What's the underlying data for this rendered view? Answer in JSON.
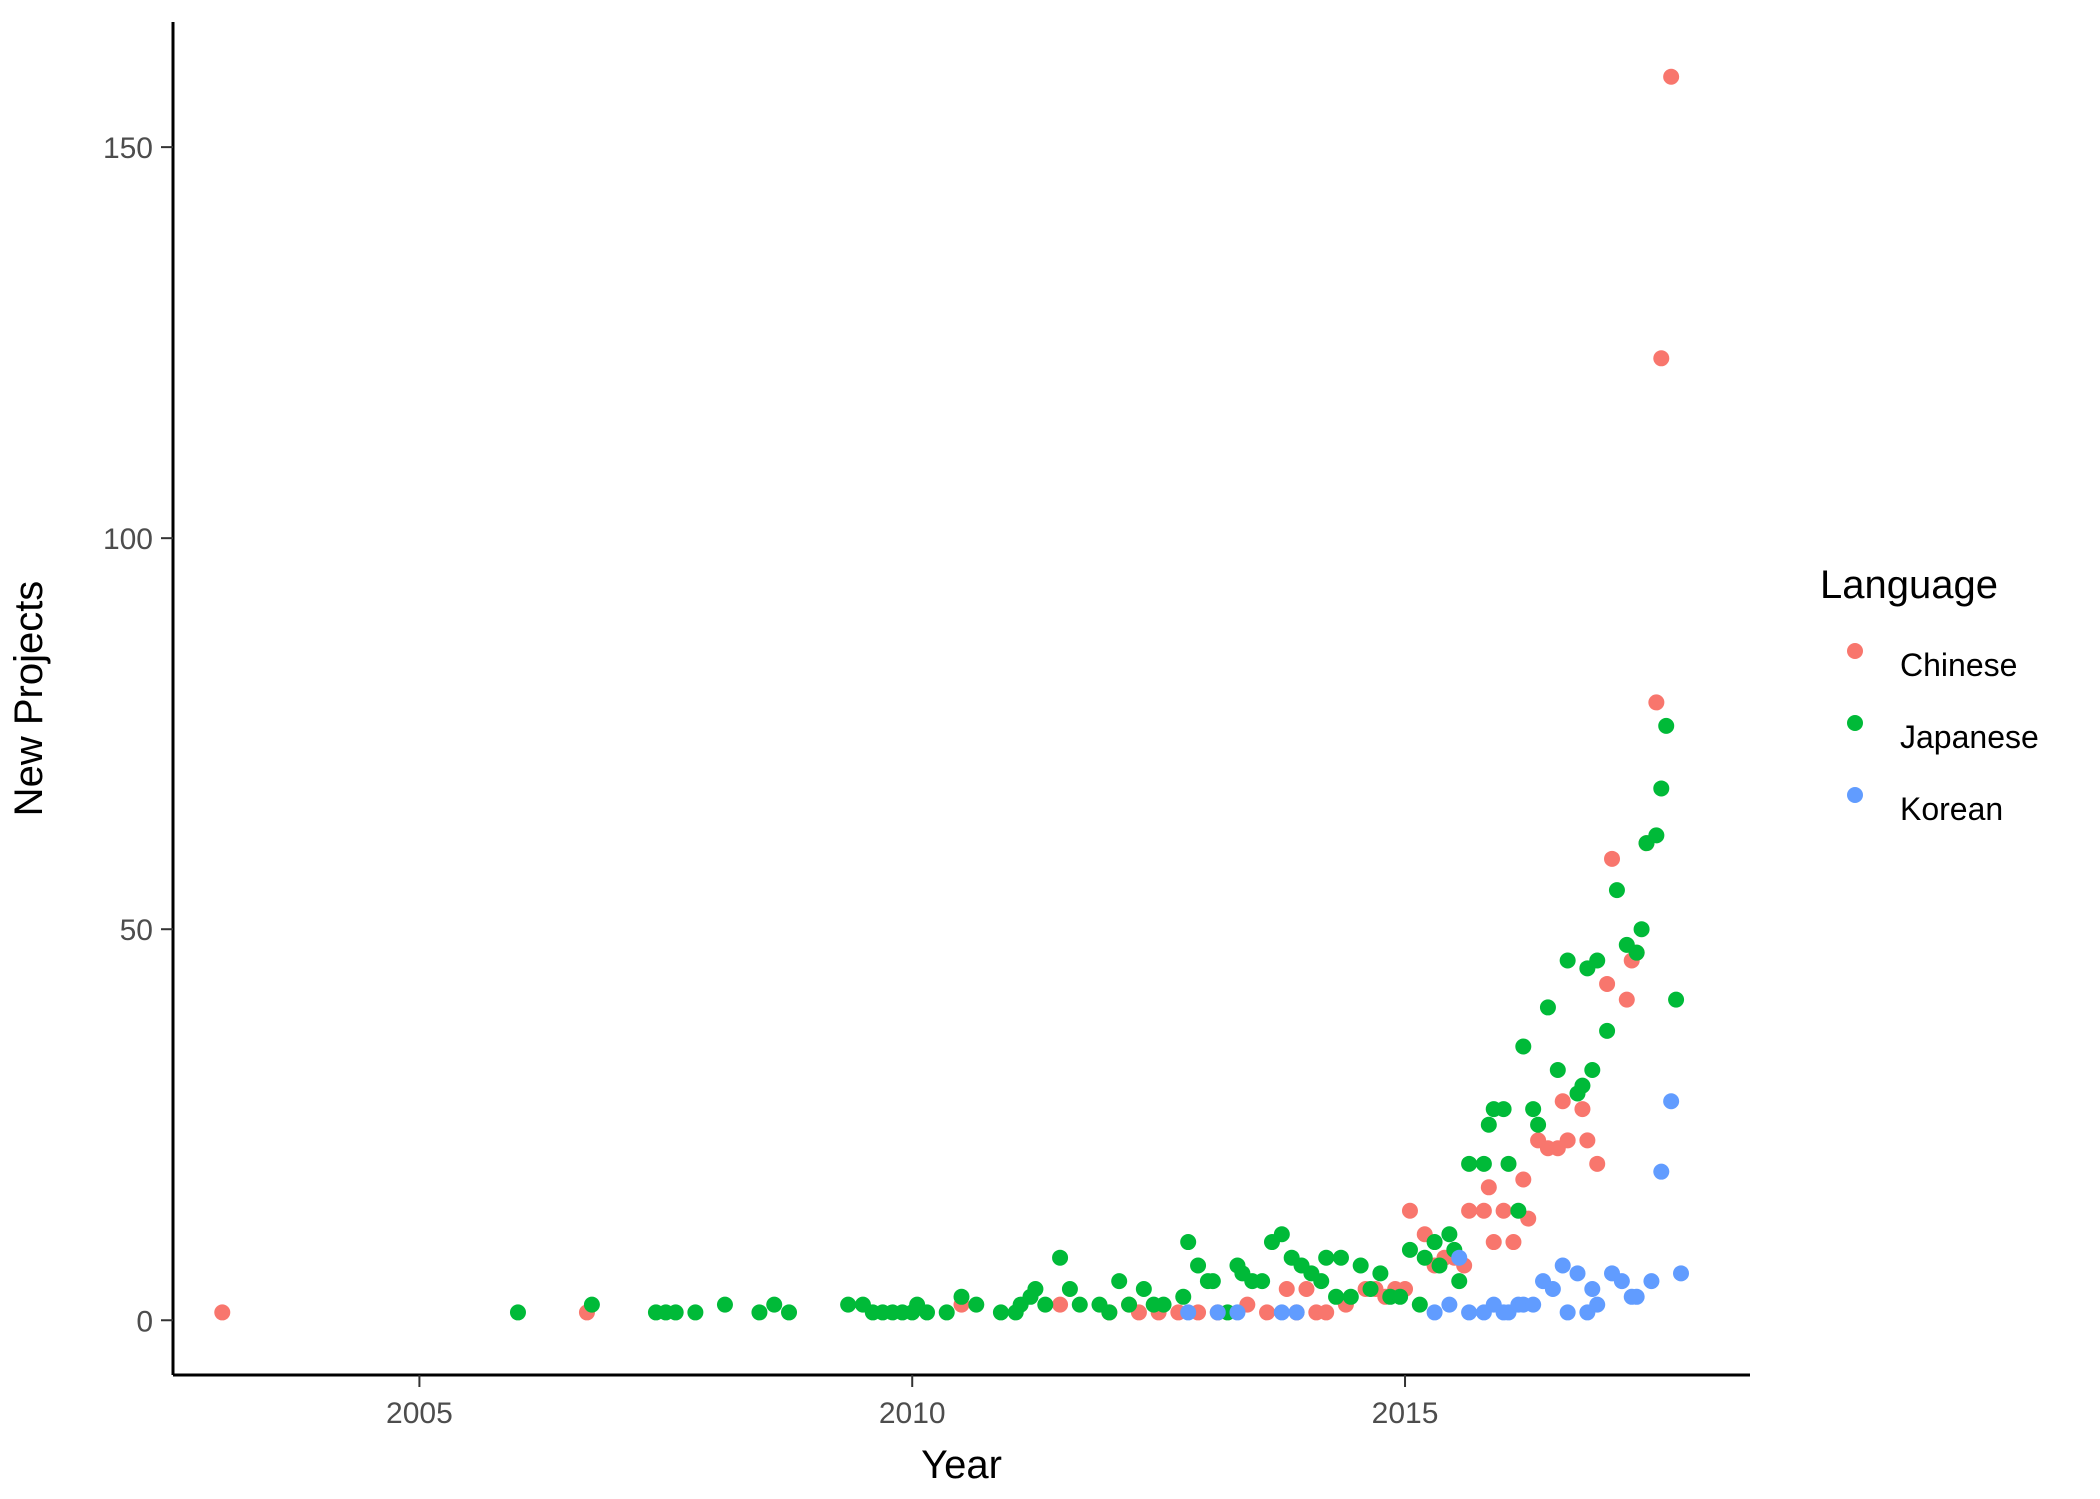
{
  "chart_data": {
    "type": "scatter",
    "title": "",
    "xlabel": "Year",
    "ylabel": "New Projects",
    "xlim": [
      2002.5,
      2018.5
    ],
    "ylim": [
      -7,
      166
    ],
    "x_ticks": [
      {
        "value": 2005,
        "label": "2005"
      },
      {
        "value": 2010,
        "label": "2010"
      },
      {
        "value": 2015,
        "label": "2015"
      }
    ],
    "y_ticks": [
      {
        "value": 0,
        "label": "0"
      },
      {
        "value": 50,
        "label": "50"
      },
      {
        "value": 100,
        "label": "100"
      },
      {
        "value": 150,
        "label": "150"
      }
    ],
    "grid": false,
    "legend": {
      "title": "Language",
      "position": "right"
    },
    "series": [
      {
        "name": "Chinese",
        "color": "#F8766D",
        "points": [
          [
            2003.0,
            1
          ],
          [
            2006.7,
            1
          ],
          [
            2010.5,
            2
          ],
          [
            2011.5,
            2
          ],
          [
            2012.0,
            1
          ],
          [
            2012.2,
            2
          ],
          [
            2012.3,
            1
          ],
          [
            2012.5,
            1
          ],
          [
            2012.7,
            1
          ],
          [
            2012.9,
            1
          ],
          [
            2013.1,
            1
          ],
          [
            2013.4,
            2
          ],
          [
            2013.6,
            1
          ],
          [
            2013.8,
            4
          ],
          [
            2013.9,
            1
          ],
          [
            2014.0,
            4
          ],
          [
            2014.1,
            1
          ],
          [
            2014.2,
            1
          ],
          [
            2014.4,
            2
          ],
          [
            2014.6,
            4
          ],
          [
            2014.7,
            4
          ],
          [
            2014.8,
            3
          ],
          [
            2014.9,
            4
          ],
          [
            2015.0,
            4
          ],
          [
            2015.05,
            14
          ],
          [
            2015.2,
            11
          ],
          [
            2015.3,
            7
          ],
          [
            2015.4,
            8
          ],
          [
            2015.5,
            8
          ],
          [
            2015.6,
            7
          ],
          [
            2015.65,
            14
          ],
          [
            2015.8,
            14
          ],
          [
            2015.85,
            17
          ],
          [
            2015.9,
            10
          ],
          [
            2016.0,
            14
          ],
          [
            2016.1,
            10
          ],
          [
            2016.2,
            18
          ],
          [
            2016.25,
            13
          ],
          [
            2016.35,
            23
          ],
          [
            2016.45,
            22
          ],
          [
            2016.55,
            22
          ],
          [
            2016.6,
            28
          ],
          [
            2016.65,
            23
          ],
          [
            2016.8,
            27
          ],
          [
            2016.85,
            23
          ],
          [
            2016.95,
            20
          ],
          [
            2017.05,
            43
          ],
          [
            2017.1,
            59
          ],
          [
            2017.25,
            41
          ],
          [
            2017.3,
            46
          ],
          [
            2017.35,
            47
          ],
          [
            2017.45,
            61
          ],
          [
            2017.55,
            79
          ],
          [
            2017.6,
            123
          ],
          [
            2017.7,
            159
          ]
        ]
      },
      {
        "name": "Japanese",
        "color": "#00BA38",
        "points": [
          [
            2006.0,
            1
          ],
          [
            2006.75,
            2
          ],
          [
            2007.4,
            1
          ],
          [
            2007.5,
            1
          ],
          [
            2007.6,
            1
          ],
          [
            2007.8,
            1
          ],
          [
            2008.1,
            2
          ],
          [
            2008.45,
            1
          ],
          [
            2008.6,
            2
          ],
          [
            2008.75,
            1
          ],
          [
            2009.35,
            2
          ],
          [
            2009.5,
            2
          ],
          [
            2009.6,
            1
          ],
          [
            2009.7,
            1
          ],
          [
            2009.8,
            1
          ],
          [
            2009.9,
            1
          ],
          [
            2010.0,
            1
          ],
          [
            2010.05,
            2
          ],
          [
            2010.15,
            1
          ],
          [
            2010.35,
            1
          ],
          [
            2010.5,
            3
          ],
          [
            2010.65,
            2
          ],
          [
            2010.9,
            1
          ],
          [
            2011.05,
            1
          ],
          [
            2011.1,
            2
          ],
          [
            2011.2,
            3
          ],
          [
            2011.25,
            4
          ],
          [
            2011.35,
            2
          ],
          [
            2011.5,
            8
          ],
          [
            2011.6,
            4
          ],
          [
            2011.7,
            2
          ],
          [
            2011.9,
            2
          ],
          [
            2012.0,
            1
          ],
          [
            2012.1,
            5
          ],
          [
            2012.2,
            2
          ],
          [
            2012.35,
            4
          ],
          [
            2012.45,
            2
          ],
          [
            2012.55,
            2
          ],
          [
            2012.75,
            3
          ],
          [
            2012.8,
            10
          ],
          [
            2012.9,
            7
          ],
          [
            2013.0,
            5
          ],
          [
            2013.05,
            5
          ],
          [
            2013.2,
            1
          ],
          [
            2013.3,
            7
          ],
          [
            2013.35,
            6
          ],
          [
            2013.45,
            5
          ],
          [
            2013.55,
            5
          ],
          [
            2013.65,
            10
          ],
          [
            2013.75,
            11
          ],
          [
            2013.85,
            8
          ],
          [
            2013.95,
            7
          ],
          [
            2014.05,
            6
          ],
          [
            2014.15,
            5
          ],
          [
            2014.2,
            8
          ],
          [
            2014.3,
            3
          ],
          [
            2014.35,
            8
          ],
          [
            2014.45,
            3
          ],
          [
            2014.55,
            7
          ],
          [
            2014.65,
            4
          ],
          [
            2014.75,
            6
          ],
          [
            2014.85,
            3
          ],
          [
            2014.95,
            3
          ],
          [
            2015.05,
            9
          ],
          [
            2015.15,
            2
          ],
          [
            2015.2,
            8
          ],
          [
            2015.3,
            10
          ],
          [
            2015.35,
            7
          ],
          [
            2015.45,
            11
          ],
          [
            2015.5,
            9
          ],
          [
            2015.55,
            5
          ],
          [
            2015.65,
            20
          ],
          [
            2015.8,
            20
          ],
          [
            2015.85,
            25
          ],
          [
            2015.9,
            27
          ],
          [
            2016.0,
            27
          ],
          [
            2016.05,
            20
          ],
          [
            2016.15,
            14
          ],
          [
            2016.2,
            35
          ],
          [
            2016.3,
            27
          ],
          [
            2016.35,
            25
          ],
          [
            2016.45,
            40
          ],
          [
            2016.55,
            32
          ],
          [
            2016.65,
            46
          ],
          [
            2016.75,
            29
          ],
          [
            2016.8,
            30
          ],
          [
            2016.85,
            45
          ],
          [
            2016.9,
            32
          ],
          [
            2016.95,
            46
          ],
          [
            2017.05,
            37
          ],
          [
            2017.15,
            55
          ],
          [
            2017.25,
            48
          ],
          [
            2017.35,
            47
          ],
          [
            2017.4,
            50
          ],
          [
            2017.45,
            61
          ],
          [
            2017.55,
            62
          ],
          [
            2017.6,
            68
          ],
          [
            2017.65,
            76
          ],
          [
            2017.75,
            41
          ]
        ]
      },
      {
        "name": "Korean",
        "color": "#619CFF",
        "points": [
          [
            2012.8,
            1
          ],
          [
            2013.1,
            1
          ],
          [
            2013.3,
            1
          ],
          [
            2013.75,
            1
          ],
          [
            2013.9,
            1
          ],
          [
            2015.3,
            1
          ],
          [
            2015.45,
            2
          ],
          [
            2015.55,
            8
          ],
          [
            2015.65,
            1
          ],
          [
            2015.8,
            1
          ],
          [
            2015.9,
            2
          ],
          [
            2016.0,
            1
          ],
          [
            2016.05,
            1
          ],
          [
            2016.15,
            2
          ],
          [
            2016.2,
            2
          ],
          [
            2016.3,
            2
          ],
          [
            2016.4,
            5
          ],
          [
            2016.5,
            4
          ],
          [
            2016.6,
            7
          ],
          [
            2016.65,
            1
          ],
          [
            2016.75,
            6
          ],
          [
            2016.85,
            1
          ],
          [
            2016.9,
            4
          ],
          [
            2016.95,
            2
          ],
          [
            2017.1,
            6
          ],
          [
            2017.2,
            5
          ],
          [
            2017.3,
            3
          ],
          [
            2017.35,
            3
          ],
          [
            2017.5,
            5
          ],
          [
            2017.6,
            19
          ],
          [
            2017.7,
            28
          ],
          [
            2017.8,
            6
          ]
        ]
      }
    ]
  }
}
